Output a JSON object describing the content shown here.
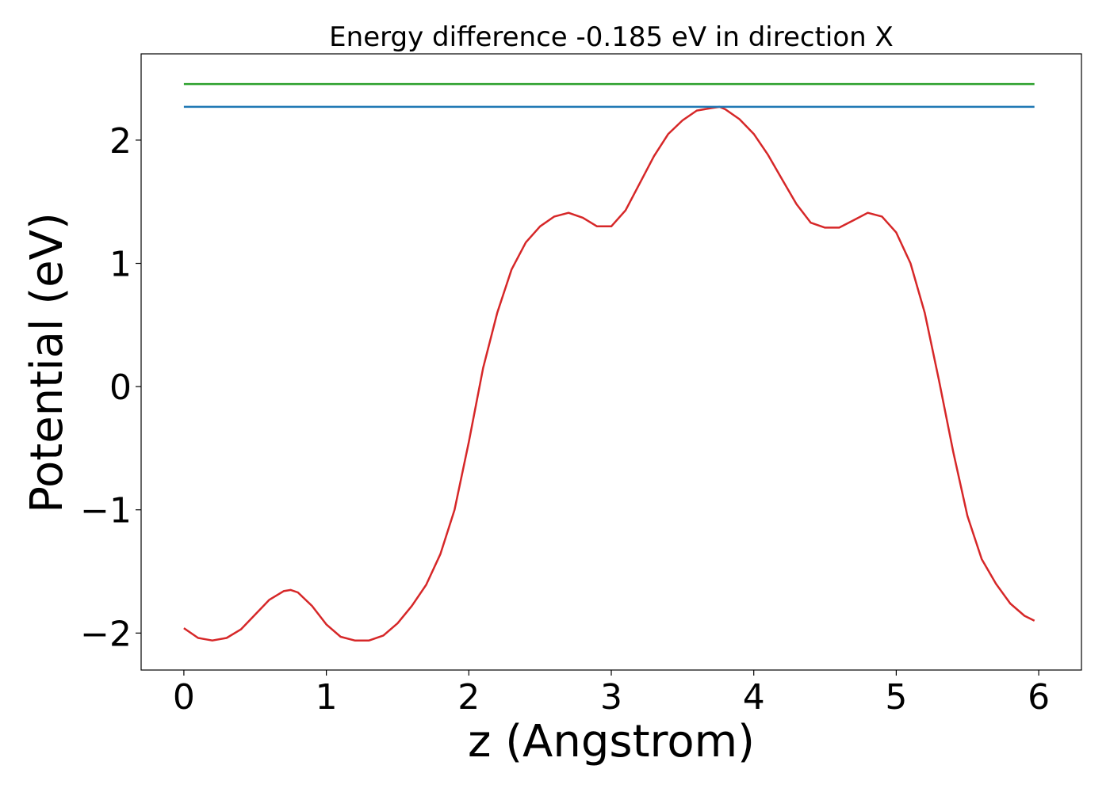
{
  "chart_data": {
    "type": "line",
    "title": "Energy difference -0.185 eV in direction X",
    "xlabel": "z (Angstrom)",
    "ylabel": "Potential (eV)",
    "xlim": [
      -0.3,
      6.3
    ],
    "ylim": [
      -2.3,
      2.7
    ],
    "x_ticks": [
      0,
      1,
      2,
      3,
      4,
      5,
      6
    ],
    "x_tick_labels": [
      "0",
      "1",
      "2",
      "3",
      "4",
      "5",
      "6"
    ],
    "y_ticks": [
      -2,
      -1,
      0,
      1,
      2
    ],
    "y_tick_labels": [
      "−2",
      "−1",
      "0",
      "1",
      "2"
    ],
    "grid": false,
    "series": [
      {
        "color": "#d62728",
        "x": [
          0,
          0.1,
          0.2,
          0.3,
          0.4,
          0.5,
          0.6,
          0.7,
          0.75,
          0.8,
          0.9,
          1.0,
          1.1,
          1.2,
          1.3,
          1.4,
          1.5,
          1.6,
          1.7,
          1.8,
          1.9,
          2.0,
          2.1,
          2.2,
          2.3,
          2.4,
          2.5,
          2.6,
          2.7,
          2.8,
          2.9,
          3.0,
          3.1,
          3.2,
          3.3,
          3.4,
          3.5,
          3.6,
          3.7,
          3.76,
          3.8,
          3.9,
          4.0,
          4.1,
          4.2,
          4.3,
          4.4,
          4.5,
          4.6,
          4.7,
          4.8,
          4.9,
          5.0,
          5.1,
          5.2,
          5.3,
          5.4,
          5.5,
          5.6,
          5.7,
          5.8,
          5.9,
          5.97
        ],
        "y": [
          -1.96,
          -2.04,
          -2.06,
          -2.04,
          -1.97,
          -1.85,
          -1.73,
          -1.66,
          -1.65,
          -1.67,
          -1.78,
          -1.93,
          -2.03,
          -2.06,
          -2.06,
          -2.02,
          -1.92,
          -1.78,
          -1.61,
          -1.36,
          -1.0,
          -0.45,
          0.15,
          0.6,
          0.95,
          1.17,
          1.3,
          1.38,
          1.41,
          1.37,
          1.3,
          1.3,
          1.43,
          1.65,
          1.87,
          2.05,
          2.16,
          2.24,
          2.26,
          2.27,
          2.25,
          2.17,
          2.05,
          1.88,
          1.68,
          1.48,
          1.33,
          1.29,
          1.29,
          1.35,
          1.41,
          1.38,
          1.25,
          1.0,
          0.6,
          0.05,
          -0.53,
          -1.05,
          -1.4,
          -1.6,
          -1.76,
          -1.86,
          -1.9
        ]
      },
      {
        "color": "#1f77b4",
        "x": [
          0,
          5.97
        ],
        "y": [
          2.27,
          2.27
        ]
      },
      {
        "color": "#2ca02c",
        "x": [
          0,
          5.97
        ],
        "y": [
          2.455,
          2.455
        ]
      }
    ]
  }
}
